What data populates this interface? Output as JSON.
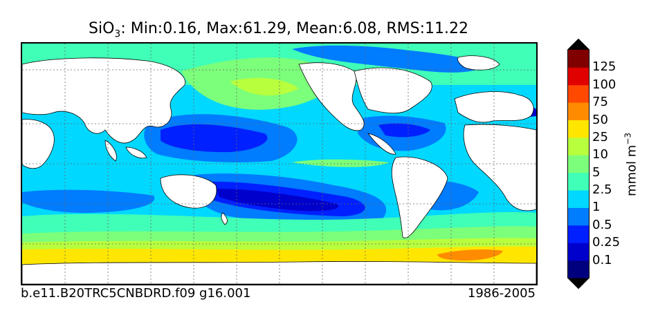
{
  "title": {
    "species": "SiO",
    "subscript": "3",
    "stats": ": Min:0.16, Max:61.29, Mean:6.08, RMS:11.22"
  },
  "footer": {
    "run_id": "b.e11.B20TRC5CNBDRD.f09 g16.001",
    "period": "1986-2005"
  },
  "colorbar": {
    "units_base": "mmol m",
    "units_exp": "−3",
    "levels": [
      "0.1",
      "0.25",
      "0.5",
      "1",
      "2.5",
      "5",
      "10",
      "25",
      "50",
      "75",
      "100",
      "125"
    ],
    "colors": [
      "#00007f",
      "#0000cd",
      "#0020ff",
      "#007cff",
      "#00d8ff",
      "#40ffb7",
      "#7cff7a",
      "#b8ff3e",
      "#ffe600",
      "#ff8c00",
      "#ff4800",
      "#e00000",
      "#800000"
    ],
    "extend": "both"
  },
  "map": {
    "projection": "cylindrical",
    "grid": true,
    "land_color": "#ffffff",
    "ocean_base_color": "#00d8ff"
  }
}
